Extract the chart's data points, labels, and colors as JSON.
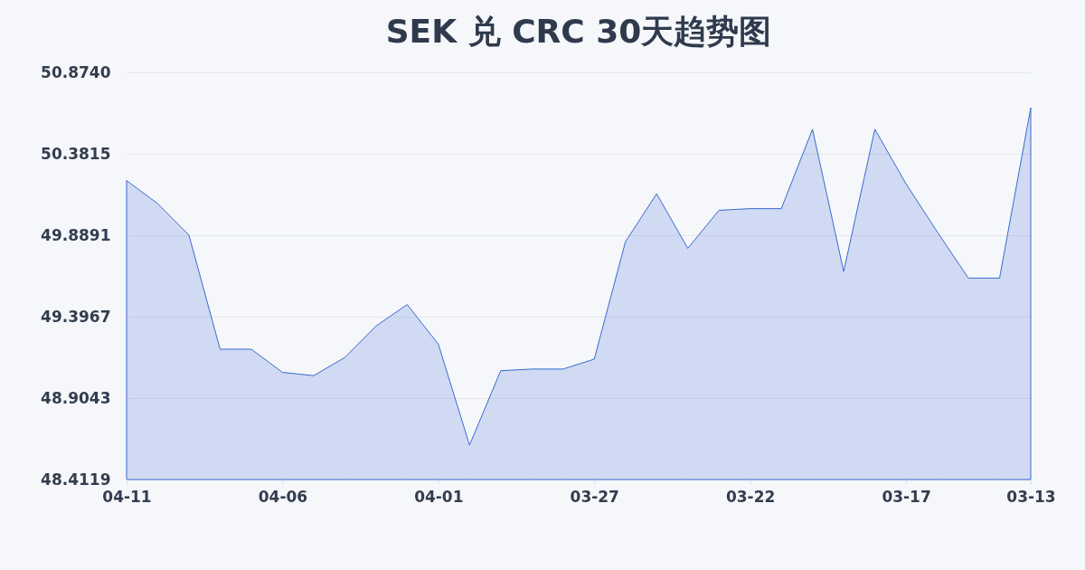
{
  "chart_data": {
    "type": "area",
    "title": "SEK 兑 CRC 30天趋势图",
    "categories": [
      "04-11",
      null,
      null,
      null,
      null,
      "04-06",
      null,
      null,
      null,
      null,
      "04-01",
      null,
      null,
      null,
      null,
      "03-27",
      null,
      null,
      null,
      null,
      "03-22",
      null,
      null,
      null,
      null,
      "03-17",
      null,
      null,
      null,
      "03-13"
    ],
    "series": [
      {
        "color": "#3a6bd0",
        "values": [
          50.22,
          50.08,
          49.89,
          49.2,
          49.2,
          49.06,
          49.04,
          49.15,
          49.34,
          49.47,
          49.23,
          48.62,
          49.07,
          49.08,
          49.08,
          49.14,
          49.85,
          50.14,
          49.81,
          50.04,
          50.05,
          50.05,
          50.53,
          49.67,
          50.53,
          50.2,
          49.91,
          49.63,
          49.63,
          50.66
        ]
      }
    ],
    "ylim": [
      48.4119,
      50.874
    ],
    "yticks": [
      48.4119,
      48.9043,
      49.3967,
      49.8891,
      50.3815,
      {
        "value": 50.874,
        "label": "50.8740"
      }
    ],
    "grid": "y"
  }
}
